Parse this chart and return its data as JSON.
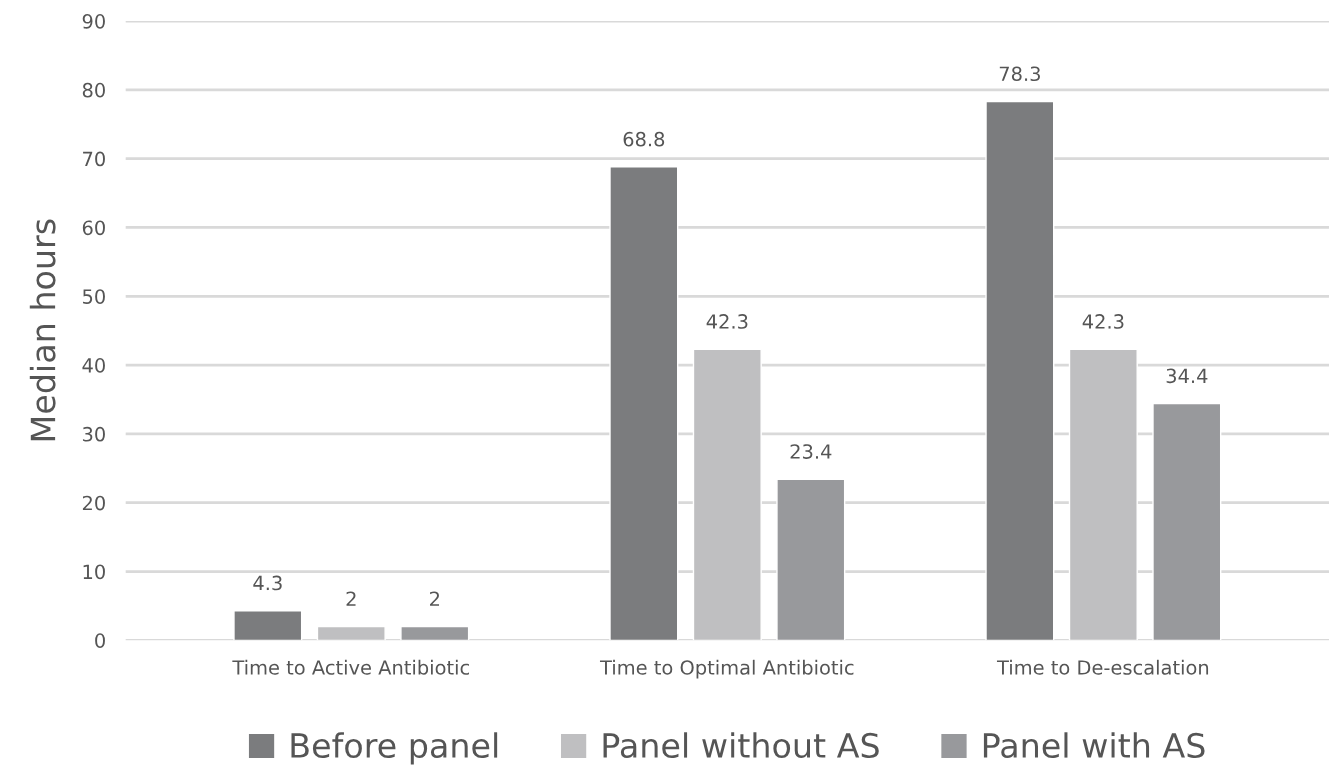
{
  "chart_data": {
    "type": "bar",
    "ylabel": "Median hours",
    "categories": [
      "Time to Active Antibiotic",
      "Time to Optimal Antibiotic",
      "Time to De-escalation"
    ],
    "series": [
      {
        "name": "Before panel",
        "color": "#7b7c7e",
        "values": [
          4.3,
          68.8,
          78.3
        ]
      },
      {
        "name": "Panel without AS",
        "color": "#bfbfc1",
        "values": [
          2,
          42.3,
          42.3
        ]
      },
      {
        "name": "Panel with AS",
        "color": "#98999c",
        "values": [
          2,
          23.4,
          34.4
        ]
      }
    ],
    "ylim": [
      0,
      90
    ],
    "yticks": [
      0,
      10,
      20,
      30,
      40,
      50,
      60,
      70,
      80,
      90
    ],
    "grid": "y",
    "legend": "bottom",
    "data_labels": true
  }
}
